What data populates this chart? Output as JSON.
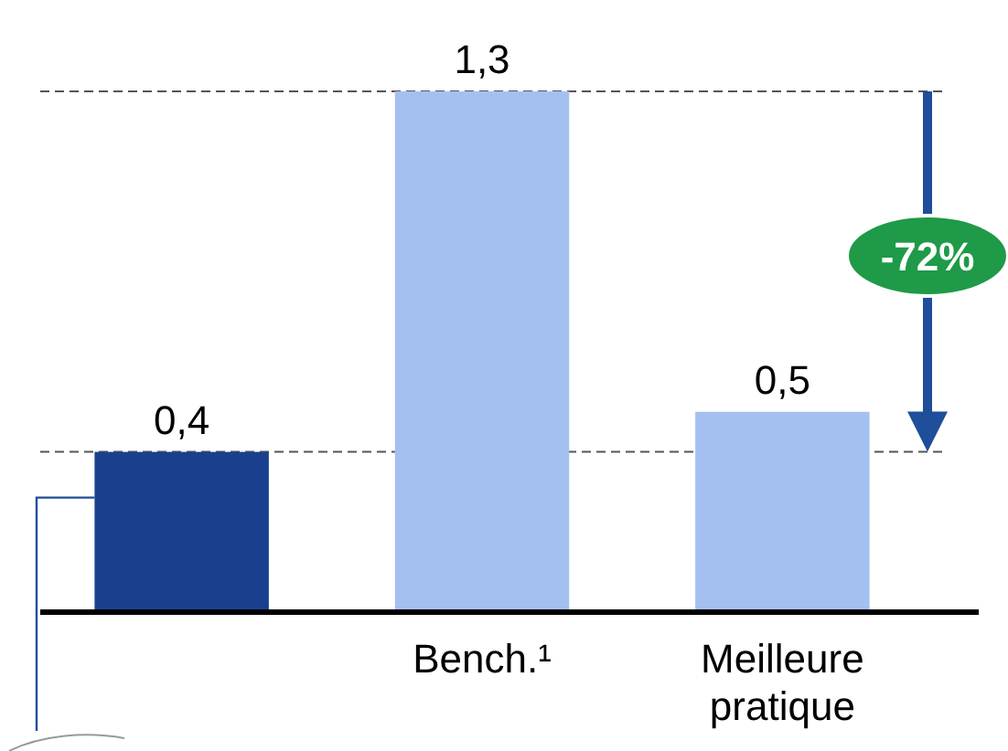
{
  "chart_data": {
    "type": "bar",
    "categories": [
      null,
      "Bench.¹",
      "Meilleure pratique"
    ],
    "values": [
      0.4,
      1.3,
      0.5
    ],
    "colors": [
      "#1a3f8f",
      "#a4c0f0",
      "#a4c0f0"
    ],
    "value_labels": [
      "0,4",
      "1,3",
      "0,5"
    ],
    "ref_lines": [
      {
        "axis": "y",
        "value": 1.3,
        "color": "#555555",
        "line_style": "dashed"
      },
      {
        "axis": "y",
        "value": 0.4,
        "color": "#555555",
        "line_style": "dashed"
      }
    ],
    "annotations": [
      "-72%"
    ]
  }
}
